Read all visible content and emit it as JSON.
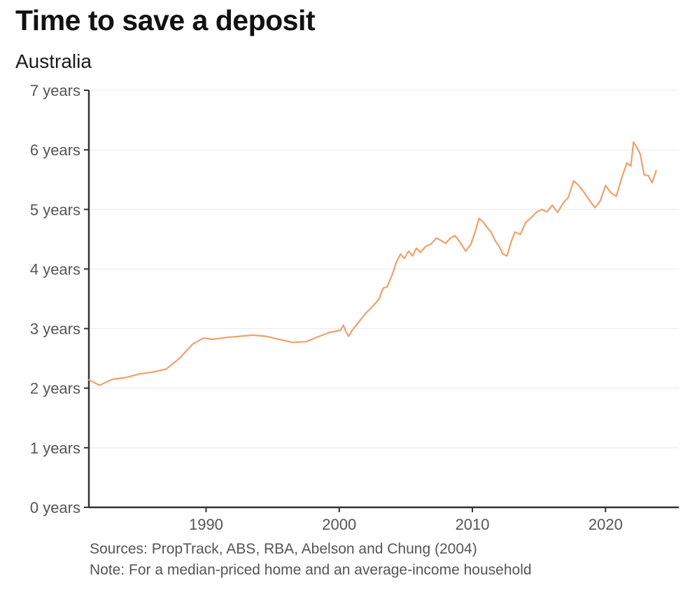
{
  "chart_data": {
    "type": "line",
    "title": "Time to save a deposit",
    "subtitle": "Australia",
    "xlabel": "",
    "ylabel": "",
    "xlim": [
      1981.2,
      2025.5
    ],
    "ylim": [
      0,
      7
    ],
    "grid": true,
    "legend": "none",
    "x_ticks": [
      1990,
      2000,
      2010,
      2020
    ],
    "x_tick_labels": [
      "1990",
      "2000",
      "2010",
      "2020"
    ],
    "y_ticks": [
      0,
      1,
      2,
      3,
      4,
      5,
      6,
      7
    ],
    "y_tick_labels": [
      "0 years",
      "1 years",
      "2 years",
      "3 years",
      "4 years",
      "5 years",
      "6 years",
      "7 years"
    ],
    "series": [
      {
        "name": "Time to save a deposit",
        "color": "#F0A06C",
        "points": [
          [
            1981.2,
            2.14
          ],
          [
            1982.0,
            2.05
          ],
          [
            1983.0,
            2.15
          ],
          [
            1984.0,
            2.18
          ],
          [
            1985.0,
            2.24
          ],
          [
            1986.0,
            2.27
          ],
          [
            1987.0,
            2.32
          ],
          [
            1988.0,
            2.5
          ],
          [
            1989.0,
            2.74
          ],
          [
            1989.8,
            2.84
          ],
          [
            1990.5,
            2.82
          ],
          [
            1991.5,
            2.85
          ],
          [
            1992.5,
            2.87
          ],
          [
            1993.5,
            2.89
          ],
          [
            1994.5,
            2.87
          ],
          [
            1995.5,
            2.82
          ],
          [
            1996.5,
            2.77
          ],
          [
            1997.5,
            2.78
          ],
          [
            1998.5,
            2.87
          ],
          [
            1999.2,
            2.93
          ],
          [
            1999.8,
            2.96
          ],
          [
            2000.1,
            2.97
          ],
          [
            2000.3,
            3.06
          ],
          [
            2000.5,
            2.95
          ],
          [
            2000.7,
            2.87
          ],
          [
            2001.0,
            2.98
          ],
          [
            2001.5,
            3.12
          ],
          [
            2002.0,
            3.26
          ],
          [
            2002.5,
            3.37
          ],
          [
            2003.0,
            3.5
          ],
          [
            2003.3,
            3.68
          ],
          [
            2003.6,
            3.7
          ],
          [
            2004.0,
            3.92
          ],
          [
            2004.3,
            4.12
          ],
          [
            2004.6,
            4.25
          ],
          [
            2004.9,
            4.18
          ],
          [
            2005.2,
            4.3
          ],
          [
            2005.5,
            4.22
          ],
          [
            2005.8,
            4.35
          ],
          [
            2006.1,
            4.28
          ],
          [
            2006.5,
            4.38
          ],
          [
            2006.9,
            4.42
          ],
          [
            2007.3,
            4.52
          ],
          [
            2007.7,
            4.47
          ],
          [
            2008.0,
            4.43
          ],
          [
            2008.3,
            4.51
          ],
          [
            2008.7,
            4.56
          ],
          [
            2009.1,
            4.44
          ],
          [
            2009.5,
            4.3
          ],
          [
            2009.9,
            4.42
          ],
          [
            2010.2,
            4.62
          ],
          [
            2010.5,
            4.85
          ],
          [
            2010.8,
            4.79
          ],
          [
            2011.1,
            4.7
          ],
          [
            2011.4,
            4.62
          ],
          [
            2011.7,
            4.48
          ],
          [
            2012.0,
            4.38
          ],
          [
            2012.3,
            4.25
          ],
          [
            2012.6,
            4.22
          ],
          [
            2012.9,
            4.45
          ],
          [
            2013.2,
            4.62
          ],
          [
            2013.6,
            4.58
          ],
          [
            2014.0,
            4.78
          ],
          [
            2014.4,
            4.86
          ],
          [
            2014.8,
            4.95
          ],
          [
            2015.2,
            5.0
          ],
          [
            2015.6,
            4.96
          ],
          [
            2016.0,
            5.07
          ],
          [
            2016.4,
            4.95
          ],
          [
            2016.8,
            5.1
          ],
          [
            2017.2,
            5.2
          ],
          [
            2017.6,
            5.48
          ],
          [
            2018.0,
            5.4
          ],
          [
            2018.4,
            5.28
          ],
          [
            2018.8,
            5.15
          ],
          [
            2019.2,
            5.03
          ],
          [
            2019.6,
            5.14
          ],
          [
            2020.0,
            5.4
          ],
          [
            2020.4,
            5.28
          ],
          [
            2020.8,
            5.22
          ],
          [
            2021.2,
            5.52
          ],
          [
            2021.6,
            5.78
          ],
          [
            2021.9,
            5.73
          ],
          [
            2022.1,
            6.13
          ],
          [
            2022.4,
            6.02
          ],
          [
            2022.6,
            5.93
          ],
          [
            2022.9,
            5.58
          ],
          [
            2023.2,
            5.57
          ],
          [
            2023.5,
            5.45
          ],
          [
            2023.8,
            5.65
          ]
        ]
      }
    ]
  },
  "footer": {
    "sources": "Sources: PropTrack, ABS, RBA, Abelson and Chung (2004)",
    "note": "Note: For a median-priced home and an average-income household"
  },
  "colors": {
    "line": "#F0A06C",
    "axis": "#333333",
    "grid": "#ececec",
    "tick_text": "#555555"
  }
}
